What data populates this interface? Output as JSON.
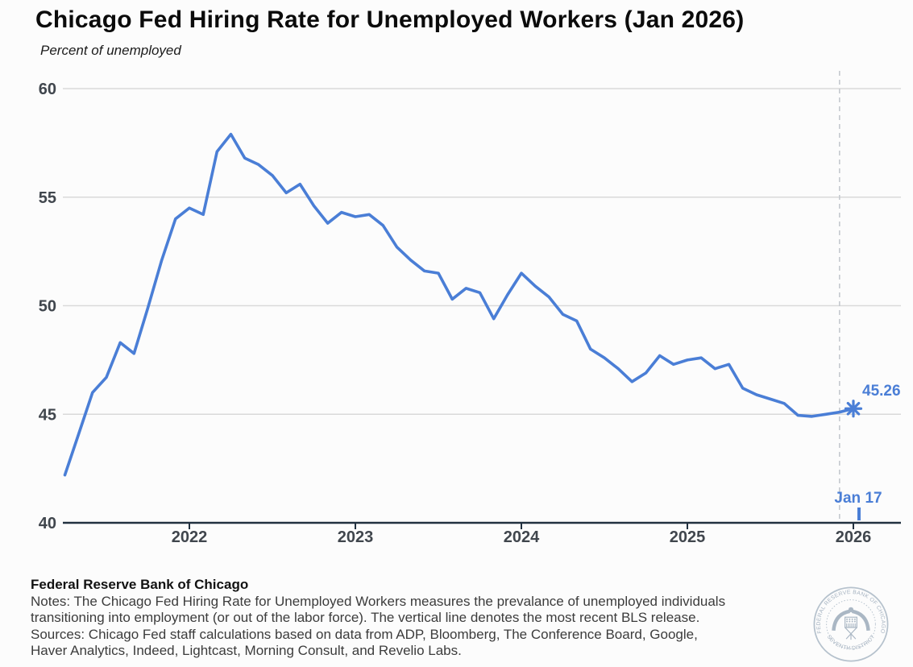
{
  "header": {
    "title": "Chicago Fed Hiring Rate for Unemployed Workers (Jan 2026)",
    "subtitle": "Percent of unemployed"
  },
  "chart_data": {
    "type": "line",
    "title": "Chicago Fed Hiring Rate for Unemployed Workers (Jan 2026)",
    "subtitle": "Percent of unemployed",
    "frequency": "monthly",
    "grid": true,
    "line_color": "#4a7ed6",
    "ylim": [
      40,
      60
    ],
    "y_tick_labels": [
      40,
      45,
      50,
      55,
      60
    ],
    "x_tick_labels": [
      "2022",
      "2023",
      "2024",
      "2025",
      "2026"
    ],
    "months": [
      "2021-04",
      "2021-05",
      "2021-06",
      "2021-07",
      "2021-08",
      "2021-09",
      "2021-10",
      "2021-11",
      "2021-12",
      "2022-01",
      "2022-02",
      "2022-03",
      "2022-04",
      "2022-05",
      "2022-06",
      "2022-07",
      "2022-08",
      "2022-09",
      "2022-10",
      "2022-11",
      "2022-12",
      "2023-01",
      "2023-02",
      "2023-03",
      "2023-04",
      "2023-05",
      "2023-06",
      "2023-07",
      "2023-08",
      "2023-09",
      "2023-10",
      "2023-11",
      "2023-12",
      "2024-01",
      "2024-02",
      "2024-03",
      "2024-04",
      "2024-05",
      "2024-06",
      "2024-07",
      "2024-08",
      "2024-09",
      "2024-10",
      "2024-11",
      "2024-12",
      "2025-01",
      "2025-02",
      "2025-03",
      "2025-04",
      "2025-05",
      "2025-06",
      "2025-07",
      "2025-08",
      "2025-09",
      "2025-10",
      "2025-11",
      "2025-12",
      "2026-01"
    ],
    "values": [
      42.2,
      44.1,
      46.0,
      46.7,
      48.3,
      47.8,
      49.9,
      52.1,
      54.0,
      54.5,
      54.2,
      57.1,
      57.9,
      56.8,
      56.5,
      56.0,
      55.2,
      55.6,
      54.6,
      53.8,
      54.3,
      54.1,
      54.2,
      53.7,
      52.7,
      52.1,
      51.6,
      51.5,
      50.3,
      50.8,
      50.6,
      49.4,
      50.5,
      51.5,
      50.9,
      50.4,
      49.6,
      49.3,
      48.0,
      47.6,
      47.1,
      46.5,
      46.9,
      47.7,
      47.3,
      47.5,
      47.6,
      47.1,
      47.3,
      46.2,
      45.9,
      45.7,
      45.5,
      44.95,
      44.9,
      45.0,
      45.1,
      45.26
    ],
    "latest": {
      "month": "2026-01",
      "value": 45.26,
      "value_label": "45.26"
    },
    "bls_release_tick_label": "Jan 17",
    "legend": "none"
  },
  "footer": {
    "org": "Federal Reserve Bank of Chicago",
    "notes_line1": "Notes: The Chicago Fed Hiring Rate for Unemployed Workers measures the prevalance of unemployed individuals",
    "notes_line2": "transitioning into employment (or out of the labor force). The vertical line denotes the most recent BLS release.",
    "sources_line1": "Sources: Chicago Fed staff calculations based on data from ADP, Bloomberg, The Conference Board, Google,",
    "sources_line2": "Haver Analytics, Indeed, Lightcast, Morning Consult, and Revelio Labs."
  },
  "seal": {
    "top_text": "FEDERAL RESERVE BANK OF CHICAGO",
    "bottom_text": "SEVENTH DISTRICT"
  }
}
